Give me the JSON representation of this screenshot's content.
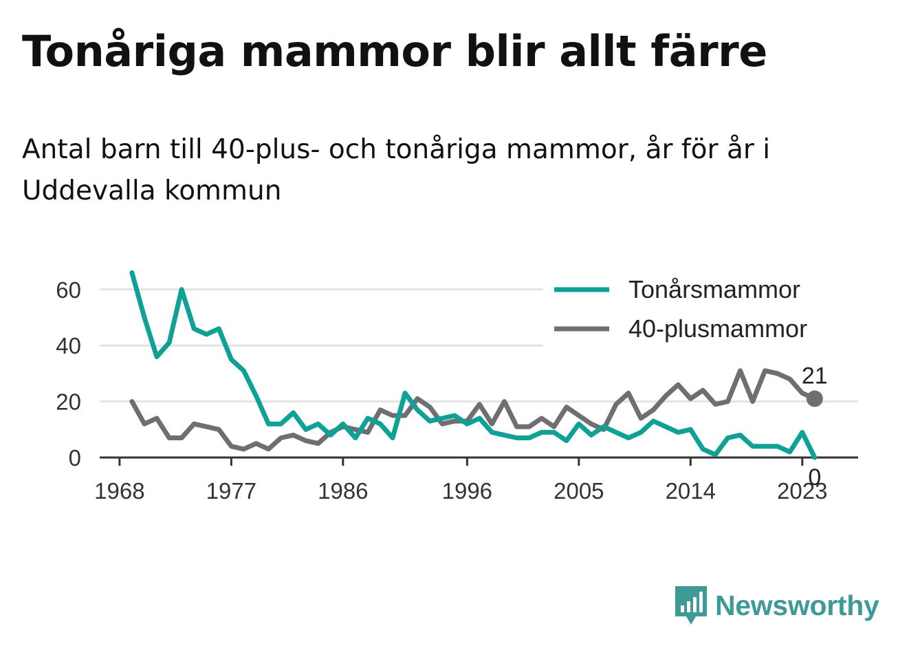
{
  "title": "Tonåriga mammor blir allt färre",
  "subtitle": "Antal barn till 40-plus- och tonåriga mammor, år för år i Uddevalla kommun",
  "brand": {
    "name": "Newsworthy",
    "logo_icon": "bar-chart-icon"
  },
  "colors": {
    "teen": "#10a196",
    "forty": "#6f6f73",
    "grid": "#e3e3e3",
    "axis": "#333333",
    "brand": "#3d9a96"
  },
  "chart_data": {
    "type": "line",
    "x": [
      1969,
      1970,
      1971,
      1972,
      1973,
      1974,
      1975,
      1976,
      1977,
      1978,
      1979,
      1980,
      1981,
      1982,
      1983,
      1984,
      1985,
      1986,
      1987,
      1988,
      1989,
      1990,
      1991,
      1992,
      1993,
      1994,
      1995,
      1996,
      1997,
      1998,
      1999,
      2000,
      2001,
      2002,
      2003,
      2004,
      2005,
      2006,
      2007,
      2008,
      2009,
      2010,
      2011,
      2012,
      2013,
      2014,
      2015,
      2016,
      2017,
      2018,
      2019,
      2020,
      2021,
      2022,
      2023,
      2024
    ],
    "series": [
      {
        "name": "Tonårsmammor",
        "color": "#10a196",
        "values": [
          66,
          50,
          36,
          41,
          60,
          46,
          44,
          46,
          35,
          31,
          22,
          12,
          12,
          16,
          10,
          12,
          8,
          12,
          7,
          14,
          12,
          7,
          23,
          17,
          13,
          14,
          15,
          12,
          14,
          9,
          8,
          7,
          7,
          9,
          9,
          6,
          12,
          8,
          11,
          9,
          7,
          9,
          13,
          11,
          9,
          10,
          3,
          1,
          7,
          8,
          4,
          4,
          4,
          2,
          9,
          0
        ]
      },
      {
        "name": "40-plusmammor",
        "color": "#6f6f73",
        "values": [
          20,
          12,
          14,
          7,
          7,
          12,
          11,
          10,
          4,
          3,
          5,
          3,
          7,
          8,
          6,
          5,
          9,
          11,
          10,
          9,
          17,
          15,
          15,
          21,
          18,
          12,
          13,
          13,
          19,
          12,
          20,
          11,
          11,
          14,
          11,
          18,
          15,
          12,
          10,
          19,
          23,
          14,
          17,
          22,
          26,
          21,
          24,
          19,
          20,
          31,
          20,
          31,
          30,
          28,
          23,
          21
        ]
      }
    ],
    "xticks": [
      "1968",
      "1977",
      "1986",
      "1996",
      "2005",
      "2014",
      "2023"
    ],
    "yticks": [
      "0",
      "20",
      "40",
      "60"
    ],
    "ylim": [
      0,
      66
    ],
    "grid": true,
    "legend_position": "top-right",
    "end_labels": {
      "forty": "21",
      "teen": "0"
    }
  }
}
